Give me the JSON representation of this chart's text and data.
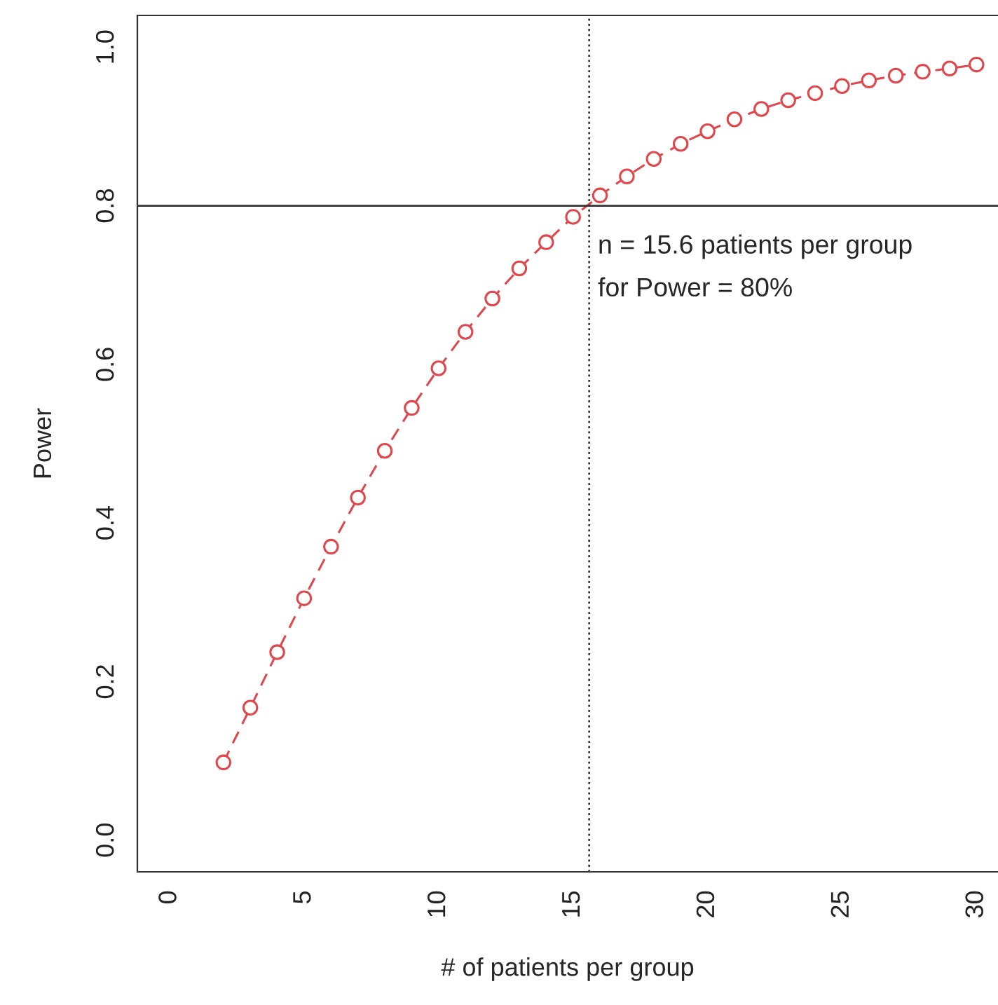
{
  "chart_data": {
    "type": "line",
    "xlabel": "# of patients per group",
    "ylabel": "Power",
    "x": [
      2,
      3,
      4,
      5,
      6,
      7,
      8,
      9,
      10,
      11,
      12,
      13,
      14,
      15,
      16,
      17,
      18,
      19,
      20,
      21,
      22,
      23,
      24,
      25,
      26,
      27,
      28,
      29,
      30
    ],
    "series": [
      {
        "color": "#e0474c",
        "values": [
          0.098,
          0.167,
          0.237,
          0.305,
          0.37,
          0.432,
          0.491,
          0.545,
          0.595,
          0.641,
          0.683,
          0.721,
          0.754,
          0.786,
          0.813,
          0.837,
          0.859,
          0.878,
          0.894,
          0.909,
          0.922,
          0.933,
          0.942,
          0.951,
          0.958,
          0.964,
          0.969,
          0.973,
          0.978
        ]
      }
    ],
    "marker": "circle",
    "line_style": "dashed",
    "xlim": [
      -1.2,
      30.8
    ],
    "ylim": [
      -0.04,
      1.04
    ],
    "xticks": [
      0,
      5,
      10,
      15,
      20,
      25,
      30
    ],
    "yticks": [
      {
        "value": 0,
        "label": "0.0"
      },
      {
        "value": 0.2,
        "label": "0.2"
      },
      {
        "value": 0.4,
        "label": "0.4"
      },
      {
        "value": 0.6,
        "label": "0.6"
      },
      {
        "value": 0.8,
        "label": "0.8"
      },
      {
        "value": 1,
        "label": "1.0"
      }
    ],
    "ref_lines": [
      {
        "axis": "y",
        "value": 0.8,
        "color": "#333333",
        "line_style": "solid"
      },
      {
        "axis": "x",
        "value": 15.6,
        "color": "#333333",
        "line_style": "dotted"
      }
    ],
    "annotations": [
      "n = 15.6 patients per group",
      "for Power = 80%"
    ],
    "grid": false,
    "legend": false
  }
}
